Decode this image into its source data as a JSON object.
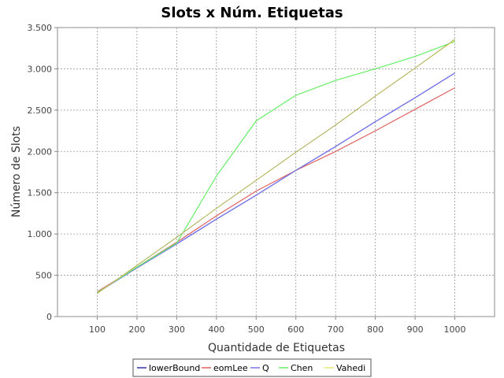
{
  "chart_data": {
    "type": "line",
    "title": "Slots x Núm. Etiquetas",
    "xlabel": "Quantidade de Etiquetas",
    "ylabel": "Número de Slots",
    "x": [
      100,
      200,
      300,
      400,
      500,
      600,
      700,
      800,
      900,
      1000
    ],
    "xlim": [
      0,
      1100
    ],
    "ylim": [
      0,
      3500
    ],
    "x_tick_labels": [
      "100",
      "200",
      "300",
      "400",
      "500",
      "600",
      "700",
      "800",
      "900",
      "1000"
    ],
    "y_ticks": [
      0,
      500,
      1000,
      1500,
      2000,
      2500,
      3000,
      3500
    ],
    "y_tick_labels": [
      "0",
      "500",
      "1.000",
      "1.500",
      "2.000",
      "2.500",
      "3.000",
      "3.500"
    ],
    "grid": true,
    "legend_position": "bottom-center",
    "series": [
      {
        "name": "lowerBound",
        "color": "#3333aa",
        "values": [
          290,
          590,
          880,
          1180,
          1470,
          1770,
          2060,
          2360,
          2650,
          2950
        ]
      },
      {
        "name": "eomLee",
        "color": "#e06060",
        "values": [
          300,
          600,
          900,
          1220,
          1520,
          1770,
          2000,
          2250,
          2510,
          2770
        ]
      },
      {
        "name": "Q",
        "color": "#7777ee",
        "values": [
          290,
          590,
          880,
          1180,
          1470,
          1770,
          2060,
          2360,
          2650,
          2950
        ]
      },
      {
        "name": "Chen",
        "color": "#66ee66",
        "values": [
          290,
          600,
          890,
          1700,
          2370,
          2680,
          2860,
          3000,
          3150,
          3330
        ]
      },
      {
        "name": "Vahedi",
        "color": "#e8e870",
        "values": [
          280,
          620,
          960,
          1310,
          1650,
          1990,
          2320,
          2670,
          3010,
          3350
        ]
      }
    ],
    "overlay_line": {
      "color": "#999966",
      "values": [
        280,
        620,
        960,
        1310,
        1650,
        1990,
        2320,
        2670,
        3010,
        3360
      ]
    }
  }
}
